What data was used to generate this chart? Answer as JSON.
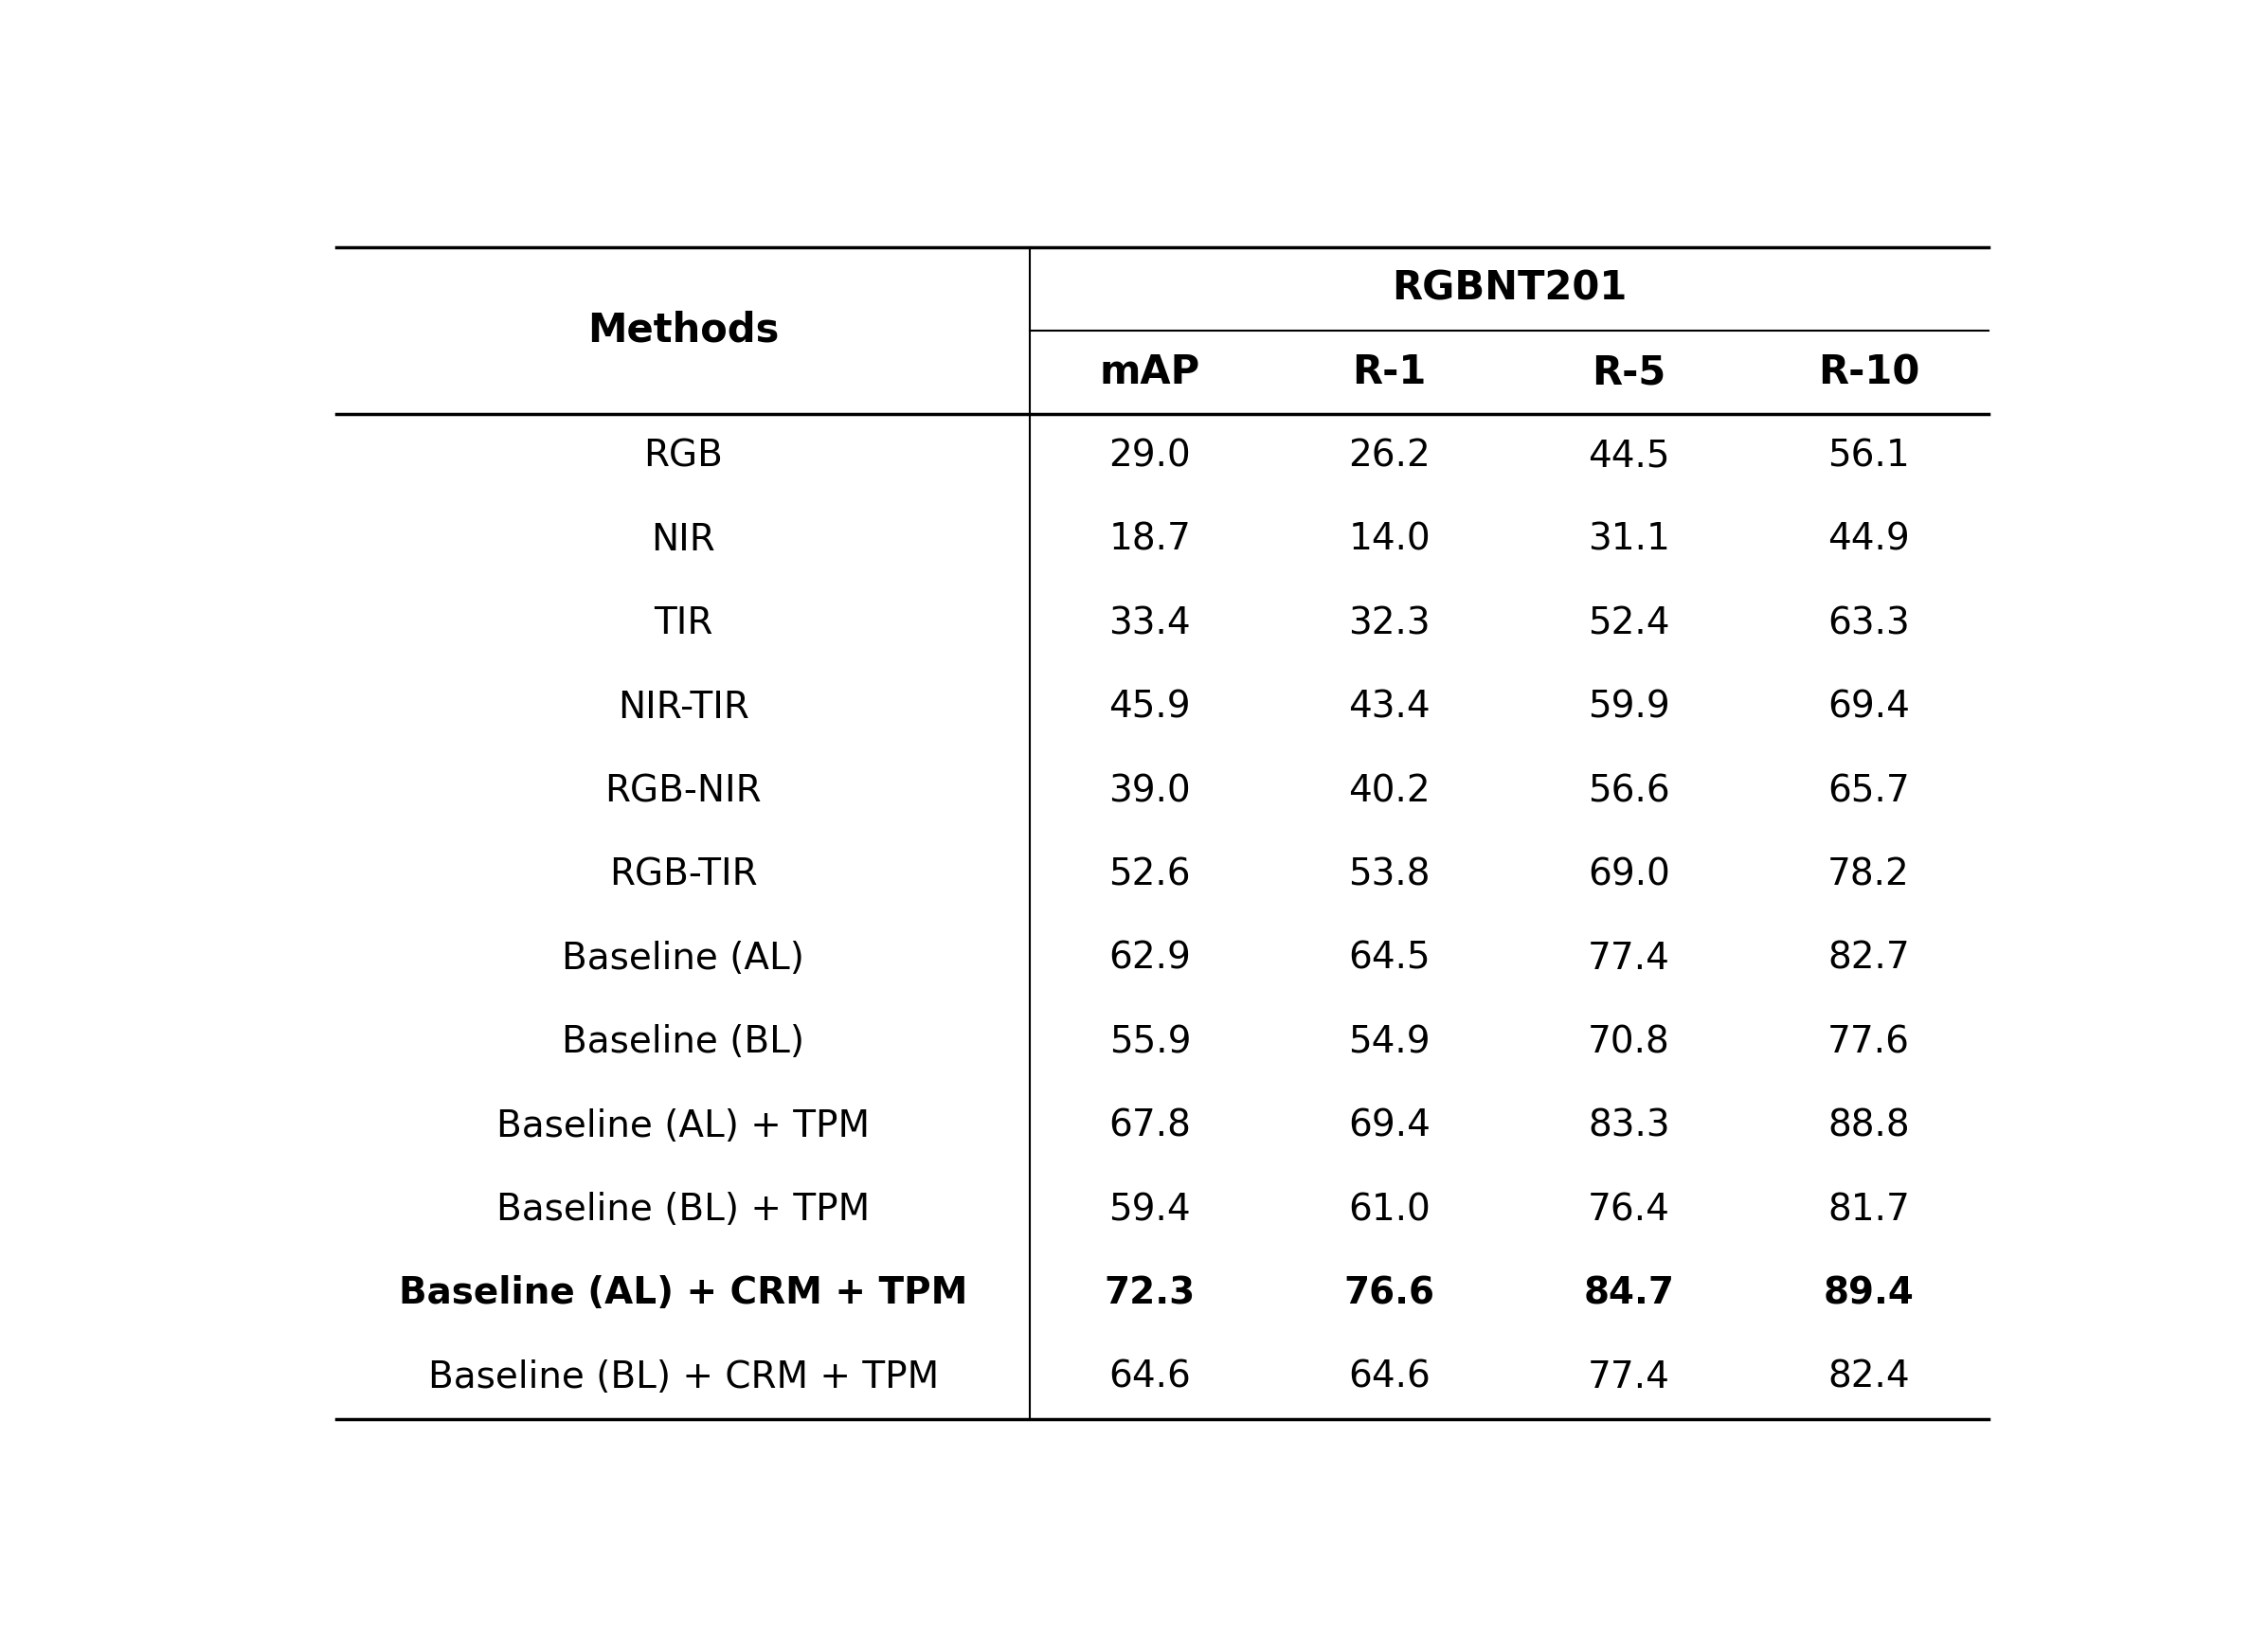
{
  "header_group": "RGBNT201",
  "rows": [
    {
      "method": "RGB",
      "mAP": "29.0",
      "R-1": "26.2",
      "R-5": "44.5",
      "R-10": "56.1",
      "bold": false
    },
    {
      "method": "NIR",
      "mAP": "18.7",
      "R-1": "14.0",
      "R-5": "31.1",
      "R-10": "44.9",
      "bold": false
    },
    {
      "method": "TIR",
      "mAP": "33.4",
      "R-1": "32.3",
      "R-5": "52.4",
      "R-10": "63.3",
      "bold": false
    },
    {
      "method": "NIR-TIR",
      "mAP": "45.9",
      "R-1": "43.4",
      "R-5": "59.9",
      "R-10": "69.4",
      "bold": false
    },
    {
      "method": "RGB-NIR",
      "mAP": "39.0",
      "R-1": "40.2",
      "R-5": "56.6",
      "R-10": "65.7",
      "bold": false
    },
    {
      "method": "RGB-TIR",
      "mAP": "52.6",
      "R-1": "53.8",
      "R-5": "69.0",
      "R-10": "78.2",
      "bold": false
    },
    {
      "method": "Baseline (AL)",
      "mAP": "62.9",
      "R-1": "64.5",
      "R-5": "77.4",
      "R-10": "82.7",
      "bold": false
    },
    {
      "method": "Baseline (BL)",
      "mAP": "55.9",
      "R-1": "54.9",
      "R-5": "70.8",
      "R-10": "77.6",
      "bold": false
    },
    {
      "method": "Baseline (AL) + TPM",
      "mAP": "67.8",
      "R-1": "69.4",
      "R-5": "83.3",
      "R-10": "88.8",
      "bold": false
    },
    {
      "method": "Baseline (BL) + TPM",
      "mAP": "59.4",
      "R-1": "61.0",
      "R-5": "76.4",
      "R-10": "81.7",
      "bold": false
    },
    {
      "method": "Baseline (AL) + CRM + TPM",
      "mAP": "72.3",
      "R-1": "76.6",
      "R-5": "84.7",
      "R-10": "89.4",
      "bold": true
    },
    {
      "method": "Baseline (BL) + CRM + TPM",
      "mAP": "64.6",
      "R-1": "64.6",
      "R-5": "77.4",
      "R-10": "82.4",
      "bold": false
    }
  ],
  "bg_color": "#ffffff",
  "text_color": "#000000",
  "line_color": "#000000",
  "font_size": 28,
  "header_font_size": 30,
  "fig_width": 23.94,
  "fig_height": 17.28,
  "lw_thick": 2.5,
  "lw_thin": 1.5
}
